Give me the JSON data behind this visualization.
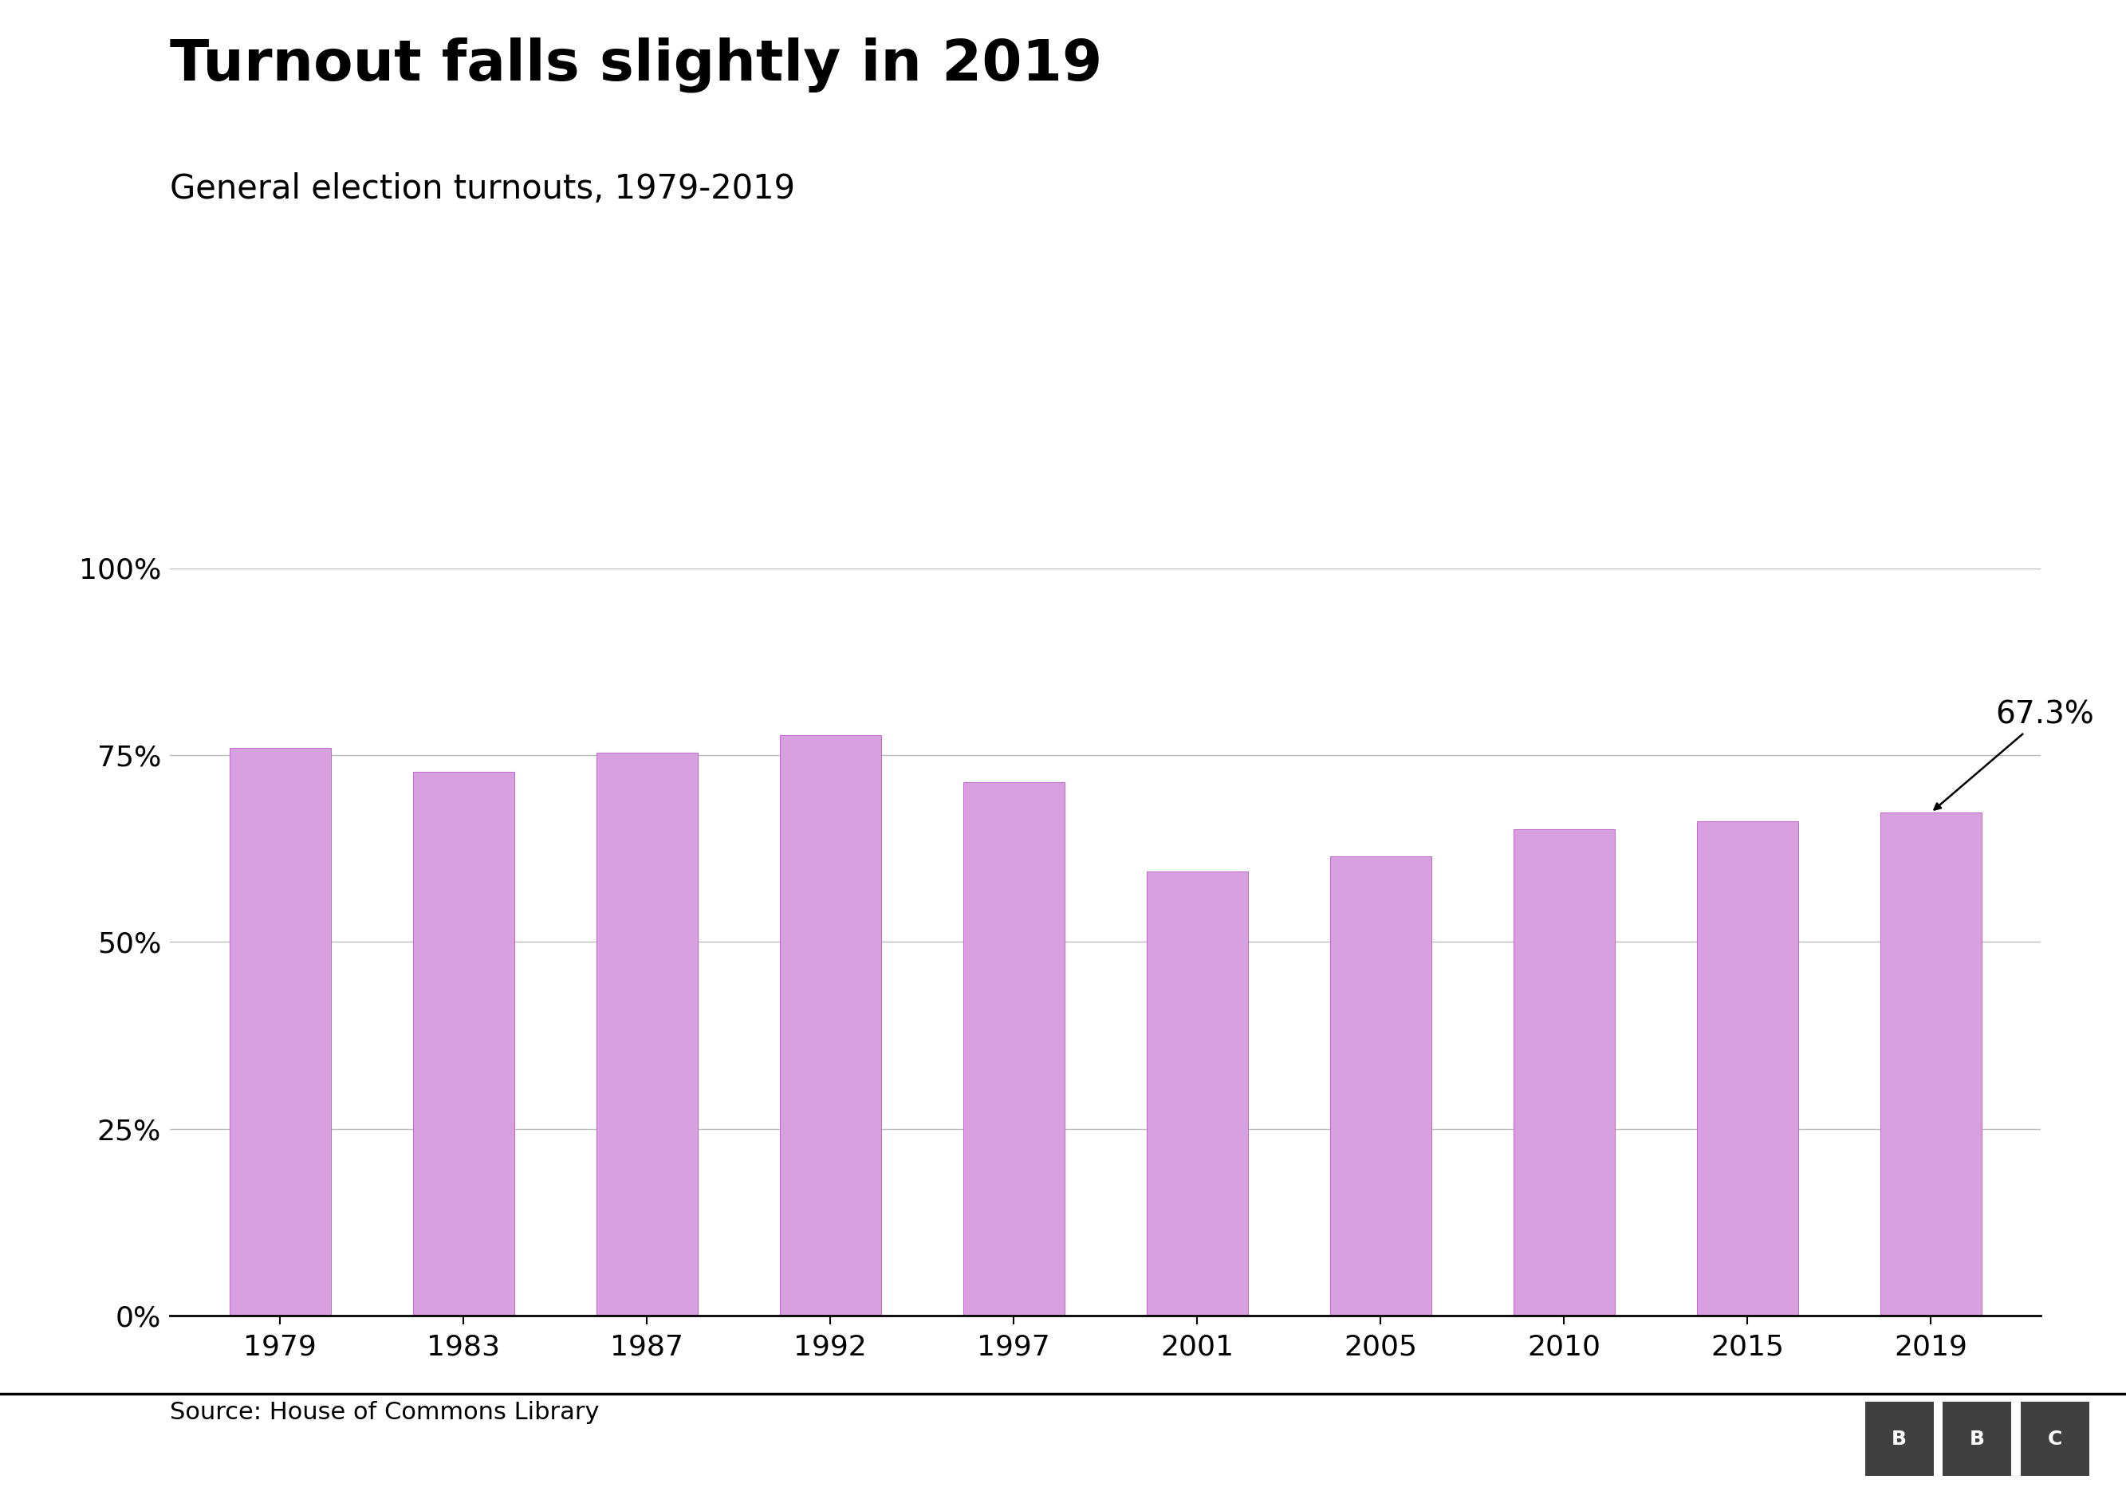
{
  "title": "Turnout falls slightly in 2019",
  "subtitle": "General election turnouts, 1979-2019",
  "source": "Source: House of Commons Library",
  "years": [
    "1979",
    "1983",
    "1987",
    "1992",
    "1997",
    "2001",
    "2005",
    "2010",
    "2015",
    "2019"
  ],
  "values": [
    76.0,
    72.7,
    75.3,
    77.7,
    71.4,
    59.4,
    61.4,
    65.1,
    66.1,
    67.3
  ],
  "bar_color": "#d9a0e0",
  "bar_edge_color": "#c070cc",
  "annotation_value": "67.3%",
  "annotation_year_index": 9,
  "ylim": [
    0,
    100
  ],
  "yticks": [
    0,
    25,
    50,
    75,
    100
  ],
  "ytick_labels": [
    "0%",
    "25%",
    "50%",
    "75%",
    "100%"
  ],
  "grid_color": "#bbbbbb",
  "background_color": "#ffffff",
  "title_fontsize": 52,
  "subtitle_fontsize": 30,
  "tick_fontsize": 26,
  "annotation_fontsize": 28,
  "source_fontsize": 22,
  "bbc_box_color": "#404040",
  "bar_width": 0.55
}
